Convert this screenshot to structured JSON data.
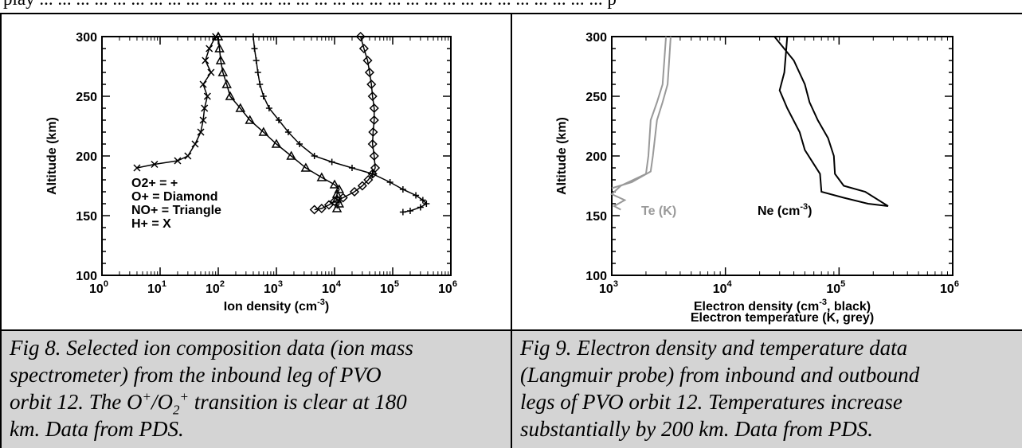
{
  "header_text": "play ... ... ... ... ... ... ... ... ... ... ... ... ... ... ... ... ... ... ... ... ... ... ... ... ... ... ... ... ... ... ... p",
  "chart_data": [
    {
      "type": "line",
      "xscale": "log",
      "xlim": [
        1,
        1000000
      ],
      "ylim": [
        100,
        300
      ],
      "xticks": [
        "10",
        "10",
        "10",
        "10",
        "10",
        "10",
        "10"
      ],
      "xtick_exponents": [
        "0",
        "1",
        "2",
        "3",
        "4",
        "5",
        "6"
      ],
      "yticks": [
        "100",
        "150",
        "200",
        "250",
        "300"
      ],
      "xlabel": "Ion density (cm",
      "xlabel_exp": "-3",
      "xlabel_end": ")",
      "ylabel": "Altitude (km)",
      "legend": [
        "O2+ = +",
        "O+ = Diamond",
        "NO+ = Triangle",
        "H+ = X"
      ],
      "series": [
        {
          "name": "O2+",
          "marker": "+",
          "points": [
            [
              400,
              300
            ],
            [
              420,
              290
            ],
            [
              450,
              280
            ],
            [
              480,
              270
            ],
            [
              520,
              260
            ],
            [
              600,
              250
            ],
            [
              750,
              240
            ],
            [
              1100,
              230
            ],
            [
              1600,
              220
            ],
            [
              2500,
              210
            ],
            [
              4500,
              200
            ],
            [
              9000,
              195
            ],
            [
              20000,
              190
            ],
            [
              45000,
              185
            ],
            [
              90000,
              178
            ],
            [
              150000,
              172
            ],
            [
              250000,
              167
            ],
            [
              330000,
              163
            ],
            [
              380000,
              160
            ],
            [
              300000,
              157
            ],
            [
              200000,
              154
            ],
            [
              150000,
              153
            ]
          ]
        },
        {
          "name": "O+",
          "marker": "diamond",
          "points": [
            [
              28000,
              300
            ],
            [
              32000,
              290
            ],
            [
              37000,
              280
            ],
            [
              40000,
              270
            ],
            [
              43000,
              260
            ],
            [
              45000,
              250
            ],
            [
              48000,
              240
            ],
            [
              48000,
              230
            ],
            [
              46000,
              220
            ],
            [
              45000,
              210
            ],
            [
              48000,
              200
            ],
            [
              50000,
              190
            ],
            [
              45000,
              185
            ],
            [
              38000,
              180
            ],
            [
              30000,
              175
            ],
            [
              22000,
              170
            ],
            [
              14000,
              165
            ],
            [
              10000,
              162
            ],
            [
              8000,
              159
            ],
            [
              6000,
              156
            ],
            [
              4500,
              155
            ]
          ]
        },
        {
          "name": "NO+",
          "marker": "triangle",
          "points": [
            [
              100,
              300
            ],
            [
              105,
              290
            ],
            [
              110,
              280
            ],
            [
              120,
              270
            ],
            [
              140,
              260
            ],
            [
              160,
              250
            ],
            [
              240,
              240
            ],
            [
              350,
              230
            ],
            [
              600,
              220
            ],
            [
              1000,
              210
            ],
            [
              1800,
              200
            ],
            [
              3200,
              190
            ],
            [
              6000,
              182
            ],
            [
              10000,
              176
            ],
            [
              12000,
              172
            ],
            [
              11000,
              168
            ],
            [
              11000,
              164
            ],
            [
              12000,
              160
            ],
            [
              11000,
              156
            ]
          ]
        },
        {
          "name": "H+",
          "marker": "x",
          "points": [
            [
              90,
              300
            ],
            [
              70,
              290
            ],
            [
              60,
              280
            ],
            [
              75,
              270
            ],
            [
              55,
              260
            ],
            [
              65,
              250
            ],
            [
              58,
              240
            ],
            [
              55,
              230
            ],
            [
              50,
              220
            ],
            [
              40,
              210
            ],
            [
              30,
              200
            ],
            [
              20,
              196
            ],
            [
              8,
              193
            ],
            [
              4,
              190
            ]
          ]
        }
      ]
    },
    {
      "type": "line",
      "xscale": "log",
      "xlim": [
        1000,
        1000000
      ],
      "ylim": [
        100,
        300
      ],
      "xticks": [
        "10",
        "10",
        "10",
        "10"
      ],
      "xtick_exponents": [
        "3",
        "4",
        "5",
        "6"
      ],
      "yticks": [
        "100",
        "150",
        "200",
        "250",
        "300"
      ],
      "xlabel": "Electron density (cm",
      "xlabel_exp": "-3",
      "xlabel_end": ", black)",
      "xlabel2": "Electron temperature (K, grey)",
      "ylabel": "Altitude (km)",
      "annotations": [
        {
          "text": "Te (K)",
          "color": "#999999"
        },
        {
          "text": "Ne (cm",
          "exp": "-3",
          "end": ")",
          "color": "#000000"
        }
      ],
      "series": [
        {
          "name": "Te inbound",
          "color": "#999999",
          "points": [
            [
              3000,
              300
            ],
            [
              2900,
              280
            ],
            [
              2800,
              260
            ],
            [
              2500,
              245
            ],
            [
              2200,
              230
            ],
            [
              2100,
              200
            ],
            [
              2000,
              185
            ],
            [
              1200,
              175
            ],
            [
              1000,
              168
            ],
            [
              1300,
              163
            ],
            [
              1050,
              158
            ],
            [
              1200,
              155
            ]
          ]
        },
        {
          "name": "Te outbound",
          "color": "#999999",
          "points": [
            [
              3300,
              300
            ],
            [
              3200,
              280
            ],
            [
              3100,
              260
            ],
            [
              2800,
              245
            ],
            [
              2500,
              230
            ],
            [
              2300,
              200
            ],
            [
              2200,
              187
            ],
            [
              1500,
              178
            ],
            [
              1000,
              173
            ]
          ]
        },
        {
          "name": "Ne inbound",
          "color": "#000000",
          "points": [
            [
              27000,
              300
            ],
            [
              40000,
              280
            ],
            [
              50000,
              260
            ],
            [
              55000,
              245
            ],
            [
              65000,
              230
            ],
            [
              80000,
              215
            ],
            [
              90000,
              200
            ],
            [
              92000,
              185
            ],
            [
              110000,
              175
            ],
            [
              170000,
              170
            ],
            [
              270000,
              158
            ],
            [
              180000,
              160
            ],
            [
              110000,
              165
            ],
            [
              70000,
              170
            ],
            [
              68000,
              185
            ],
            [
              50000,
              205
            ],
            [
              45000,
              220
            ],
            [
              35000,
              240
            ],
            [
              30000,
              255
            ],
            [
              33000,
              270
            ],
            [
              34000,
              285
            ],
            [
              35000,
              300
            ]
          ]
        }
      ]
    }
  ],
  "captions": {
    "fig8_line1": "Fig 8. Selected ion composition data (ion mass",
    "fig8_line2": "spectrometer) from the inbound leg of PVO",
    "fig8_line3_a": "orbit 12. The O",
    "fig8_line3_sup1": "+",
    "fig8_line3_b": "/O",
    "fig8_line3_sub": "2",
    "fig8_line3_sup2": "+",
    "fig8_line3_c": " transition is clear at 180",
    "fig8_line4": "km. Data from PDS.",
    "fig9_line1": "Fig 9. Electron density and temperature data",
    "fig9_line2": "(Langmuir probe) from inbound and outbound",
    "fig9_line3": "legs of PVO orbit 12. Temperatures increase",
    "fig9_line4": "substantially by 200 km. Data from PDS."
  }
}
